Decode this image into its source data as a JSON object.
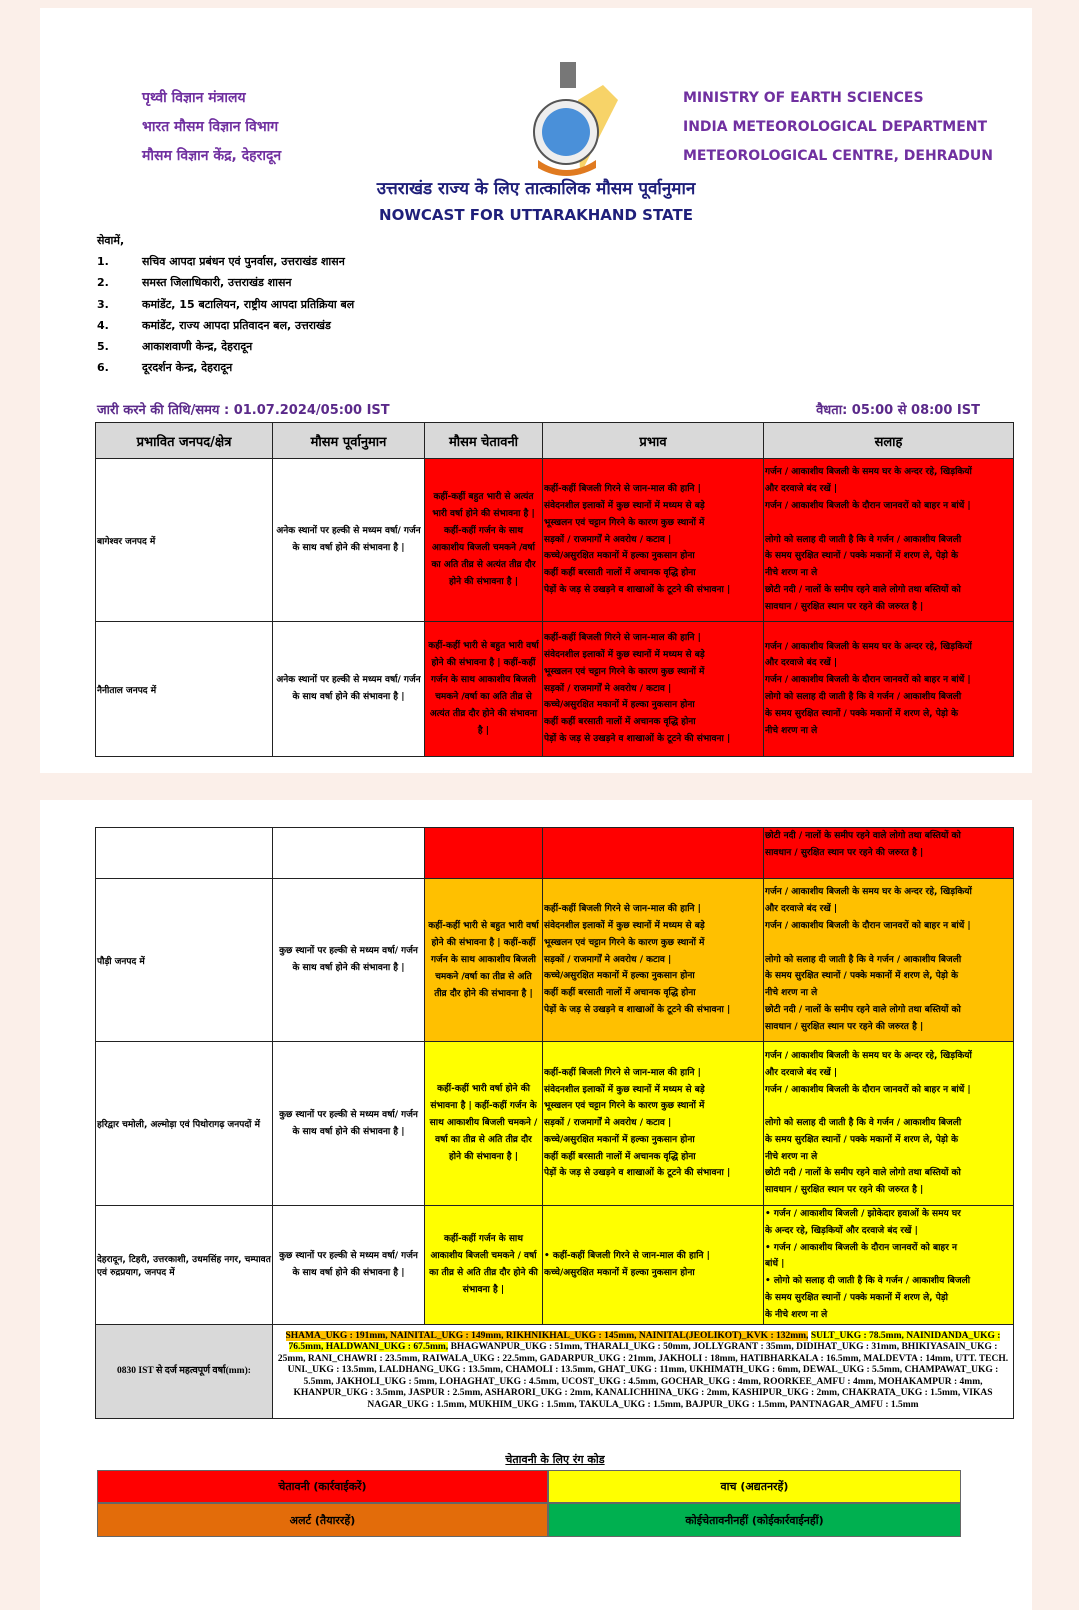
{
  "header": {
    "hindi_lines": [
      "पृथ्वी विज्ञान मंत्रालय",
      "भारत मौसम विज्ञान विभाग",
      "मौसम विज्ञान केंद्र, देहरादून"
    ],
    "english_lines": [
      "MINISTRY OF EARTH SCIENCES",
      "INDIA METEOROLOGICAL DEPARTMENT",
      "METEOROLOGICAL CENTRE, DEHRADUN"
    ],
    "title_hindi": "उत्तराखंड राज्य के लिए तात्कालिक मौसम पूर्वानुमान",
    "title_english": "NOWCAST FOR UTTARAKHAND STATE",
    "logo": "imd-emblem-logo"
  },
  "recipients": {
    "salutation": "सेवामें,",
    "items": [
      {
        "n": "1.",
        "text": "सचिव आपदा प्रबंधन एवं पुनर्वास, उत्तराखंड शासन"
      },
      {
        "n": "2.",
        "text": "समस्त जिलाधिकारी, उत्तराखंड शासन"
      },
      {
        "n": "3.",
        "text": "कमांडेंट, 15 बटालियन, राष्ट्रीय आपदा प्रतिक्रिया बल"
      },
      {
        "n": "4.",
        "text": "कमांडेंट, राज्य आपदा प्रतिवादन बल, उत्तराखंड"
      },
      {
        "n": "5.",
        "text": "आकाशवाणी केन्द्र, देहरादून"
      },
      {
        "n": "6.",
        "text": "दूरदर्शन केन्द्र, देहरादून"
      }
    ]
  },
  "issue": {
    "issued": "जारी करने की तिथि/समय : 01.07.2024/05:00 IST",
    "validity": "वैधता: 05:00 से 08:00 IST"
  },
  "colors": {
    "red": "#ff0000",
    "orange": "#ffc000",
    "yellow": "#ffff00",
    "alert_orange": "#e36c0a",
    "green": "#00b050",
    "header_gray": "#d9d9d9"
  },
  "table": {
    "columns": [
      "प्रभावित जनपद/क्षेत्र",
      "मौसम पूर्वानुमान",
      "मौसम चेतावनी",
      "प्रभाव",
      "सलाह"
    ],
    "impact_lines": [
      "कहीं-कहीं बिजली गिरने से जान-माल की हानि |",
      "संवेदनशील इलाकों में कुछ स्थानों में मध्यम से बड़े",
      "भूस्खलन एवं चट्टान गिरने के कारण कुछ स्थानों में",
      "सड़कों / राजमार्गों मे अवरोध / कटाव |",
      "कच्चे/असुरक्षित मकानों में हल्का नुकसान होना",
      "कहीं कहीं बरसाती नालों में अचानक वृद्धि होना",
      "पेड़ों के जड़ से उखड़ने व शाखाओं के टूटने की संभावना |"
    ],
    "advice_lines": [
      "गर्जन / आकाशीय बिजली के समय घर के अन्दर रहे, खिड़कियों",
      "और दरवाजे बंद रखें |",
      "गर्जन / आकाशीय बिजली के दौरान जानवरों को बाहर न बांधें |",
      "",
      "लोगो को सलाह दी जाती है कि वे गर्जन / आकाशीय बिजली",
      "के समय सुरक्षित स्थानों / पक्के मकानों में शरण ले, पेड़ो के",
      "नीचे शरण ना ले",
      "छोटी नदी / नालों के समीप रहने वाले लोगो तथा बस्तियों को",
      "सावधान / सुरक्षित स्थान पर रहने की जरुरत है |"
    ],
    "rows_page1": [
      {
        "district": "बागेश्वर जनपद में",
        "forecast": "अनेक स्थानों पर हल्की से मध्यम वर्षा/ गर्जन के साथ वर्षा होने की संभावना है |",
        "warning": "कहीं-कहीं बहुत भारी से अत्यंत भारी वर्षा होने की संभावना है | कहीं-कहीं गर्जन के साथ आकाशीय बिजली चमकने /वर्षा का अति तीव्र से अत्यंत तीव्र दौर होने की संभावना है |",
        "level": "red"
      },
      {
        "district": "नैनीताल जनपद में",
        "forecast": "अनेक स्थानों पर हल्की से मध्यम वर्षा/ गर्जन के साथ वर्षा होने की संभावना है |",
        "warning": "कहीं-कहीं भारी से बहुत भारी वर्षा होने की संभावना है | कहीं-कहीं गर्जन के साथ आकाशीय बिजली चमकने /वर्षा का अति तीव्र से अत्यंत तीव्र दौर होने की संभावना है |",
        "level": "red"
      }
    ],
    "continuation_advice": [
      "छोटी नदी / नालों के समीप रहने वाले लोगो तथा बस्तियों को",
      "सावधान / सुरक्षित स्थान पर रहने की जरुरत है |"
    ],
    "rows_page2": [
      {
        "district": "पौड़ी जनपद में",
        "forecast": "कुछ स्थानों पर हल्की से मध्यम वर्षा/ गर्जन के साथ वर्षा होने की संभावना है |",
        "warning": "कहीं-कहीं भारी से बहुत भारी वर्षा होने की संभावना है | कहीं-कहीं गर्जन के साथ आकाशीय बिजली चमकने /वर्षा का तीव्र से अति तीव्र दौर होने की संभावना है |",
        "level": "orange"
      },
      {
        "district": "हरिद्वार चमोली, अल्मोड़ा एवं पिथोरागढ़ जनपदों में",
        "forecast": "कुछ स्थानों पर हल्की से मध्यम वर्षा/ गर्जन के साथ वर्षा होने की संभावना है |",
        "warning": "कहीं-कहीं भारी वर्षा होने की संभावना है | कहीं-कहीं गर्जन के साथ आकाशीय बिजली चमकने /वर्षा का तीव्र से अति तीव्र दौर होने की संभावना है |",
        "level": "yellow"
      }
    ],
    "last_row": {
      "district": "देहरादून, टिहरी, उत्तरकाशी, उधमसिंह नगर, चम्पावत एवं रुद्रप्रयाग, जनपद में",
      "forecast": "कुछ स्थानों पर हल्की से मध्यम वर्षा/ गर्जन के साथ वर्षा होने की संभावना है |",
      "warning": "कहीं-कहीं गर्जन के साथ आकाशीय बिजली चमकने / वर्षा का तीव्र से अति तीव्र दौर होने की संभावना है |",
      "impact": [
        "• कहीं-कहीं बिजली गिरने से जान-माल की हानि |",
        "कच्चे/असुरक्षित मकानों में हल्का नुकसान होना"
      ],
      "advice": [
        "• गर्जन / आकाशीय बिजली / झोकेदार हवाओं के समय घर",
        "के अन्दर रहे, खिड़कियों और दरवाजे बंद रखें |",
        "• गर्जन / आकाशीय बिजली के दौरान जानवरों को बाहर न",
        "बांधें |",
        "• लोगो को सलाह दी जाती है कि वे गर्जन / आकाशीय बिजली",
        "के समय सुरक्षित स्थानों / पक्के मकानों में शरण ले, पेड़ो",
        "के नीचे शरण ना ले"
      ],
      "level": "yellow"
    }
  },
  "rainfall": {
    "label": "0830 IST से दर्ज महत्वपूर्ण वर्षा(mm):",
    "entries": [
      {
        "t": "SHAMA_UKG : 191mm, NAINITAL_UKG : 149mm, RIKHNIKHAL_UKG : 145mm, NAINITAL(JEOLIKOT)_KVK : 132mm,",
        "hl": "orange"
      },
      {
        "t": " ",
        "hl": ""
      },
      {
        "t": "SULT_UKG : 78.5mm, NAINIDANDA_UKG : 76.5mm, HALDWANI_UKG : 67.5mm,",
        "hl": "yellow"
      },
      {
        "t": " BHAGWANPUR_UKG : 51mm, THARALI_UKG : 50mm, JOLLYGRANT : 35mm, DIDIHAT_UKG : 31mm, BHIKIYASAIN_UKG : 25mm, RANI_CHAWRI : 23.5mm, RAIWALA_UKG : 22.5mm, GADARPUR_UKG : 21mm, JAKHOLI : 18mm, HATIBHARKALA : 16.5mm, MALDEVTA : 14mm, UTT. TECH. UNI._UKG : 13.5mm, LALDHANG_UKG : 13.5mm, CHAMOLI : 13.5mm, GHAT_UKG : 11mm, UKHIMATH_UKG : 6mm, DEWAL_UKG : 5.5mm, CHAMPAWAT_UKG : 5.5mm, JAKHOLI_UKG : 5mm, LOHAGHAT_UKG : 4.5mm, UCOST_UKG : 4.5mm, GOCHAR_UKG : 4mm, ROORKEE_AMFU : 4mm, MOHAKAMPUR : 4mm, KHANPUR_UKG : 3.5mm, JASPUR : 2.5mm, ASHARORI_UKG : 2mm, KANALICHHINA_UKG : 2mm, KASHIPUR_UKG : 2mm, CHAKRATA_UKG : 1.5mm, VIKAS NAGAR_UKG : 1.5mm, MUKHIM_UKG : 1.5mm, TAKULA_UKG : 1.5mm, BAJPUR_UKG : 1.5mm, PANTNAGAR_AMFU : 1.5mm",
        "hl": ""
      }
    ]
  },
  "legend": {
    "title": "चेतावनी के लिए रंग कोड",
    "items": [
      {
        "label": "चेतावनी (कार्रवाईकरें)",
        "color": "#ff0000"
      },
      {
        "label": "वाच (अद्यतनरहें)",
        "color": "#ffff00"
      },
      {
        "label": "अलर्ट (तैयाररहें)",
        "color": "#e36c0a"
      },
      {
        "label": "कोईचेतावनीनहीं (कोईकार्रवाईनहीं)",
        "color": "#00b050"
      }
    ]
  }
}
